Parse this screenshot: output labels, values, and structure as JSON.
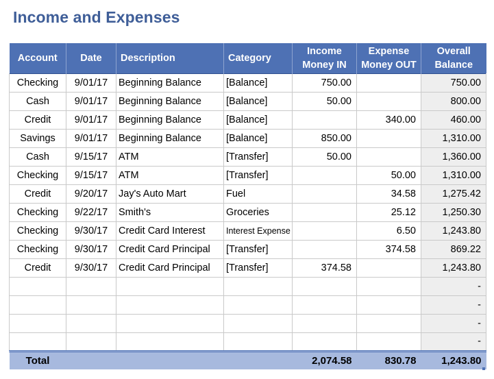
{
  "title": "Income and Expenses",
  "columns": {
    "account": "Account",
    "date": "Date",
    "description": "Description",
    "category": "Category",
    "income_line1": "Income",
    "income_line2": "Money IN",
    "expense_line1": "Expense",
    "expense_line2": "Money OUT",
    "balance_line1": "Overall",
    "balance_line2": "Balance"
  },
  "rows": [
    {
      "account": "Checking",
      "date": "9/01/17",
      "description": "Beginning Balance",
      "category": "[Balance]",
      "income": "750.00",
      "expense": "",
      "balance": "750.00"
    },
    {
      "account": "Cash",
      "date": "9/01/17",
      "description": "Beginning Balance",
      "category": "[Balance]",
      "income": "50.00",
      "expense": "",
      "balance": "800.00"
    },
    {
      "account": "Credit",
      "date": "9/01/17",
      "description": "Beginning Balance",
      "category": "[Balance]",
      "income": "",
      "expense": "340.00",
      "balance": "460.00"
    },
    {
      "account": "Savings",
      "date": "9/01/17",
      "description": "Beginning Balance",
      "category": "[Balance]",
      "income": "850.00",
      "expense": "",
      "balance": "1,310.00"
    },
    {
      "account": "Cash",
      "date": "9/15/17",
      "description": "ATM",
      "category": "[Transfer]",
      "income": "50.00",
      "expense": "",
      "balance": "1,360.00"
    },
    {
      "account": "Checking",
      "date": "9/15/17",
      "description": "ATM",
      "category": "[Transfer]",
      "income": "",
      "expense": "50.00",
      "balance": "1,310.00"
    },
    {
      "account": "Credit",
      "date": "9/20/17",
      "description": "Jay's Auto Mart",
      "category": "Fuel",
      "income": "",
      "expense": "34.58",
      "balance": "1,275.42"
    },
    {
      "account": "Checking",
      "date": "9/22/17",
      "description": "Smith's",
      "category": "Groceries",
      "income": "",
      "expense": "25.12",
      "balance": "1,250.30"
    },
    {
      "account": "Checking",
      "date": "9/30/17",
      "description": "Credit Card Interest",
      "category": "Interest Expense",
      "income": "",
      "expense": "6.50",
      "balance": "1,243.80"
    },
    {
      "account": "Checking",
      "date": "9/30/17",
      "description": "Credit Card Principal",
      "category": "[Transfer]",
      "income": "",
      "expense": "374.58",
      "balance": "869.22"
    },
    {
      "account": "Credit",
      "date": "9/30/17",
      "description": "Credit Card Principal",
      "category": "[Transfer]",
      "income": "374.58",
      "expense": "",
      "balance": "1,243.80"
    },
    {
      "account": "",
      "date": "",
      "description": "",
      "category": "",
      "income": "",
      "expense": "",
      "balance": "-"
    },
    {
      "account": "",
      "date": "",
      "description": "",
      "category": "",
      "income": "",
      "expense": "",
      "balance": "-"
    },
    {
      "account": "",
      "date": "",
      "description": "",
      "category": "",
      "income": "",
      "expense": "",
      "balance": "-"
    },
    {
      "account": "",
      "date": "",
      "description": "",
      "category": "",
      "income": "",
      "expense": "",
      "balance": "-"
    }
  ],
  "totals": {
    "label": "Total",
    "income": "2,074.58",
    "expense": "830.78",
    "balance": "1,243.80"
  },
  "colors": {
    "title": "#3f5e98",
    "header_bg": "#4e71b4",
    "total_bg": "#a7b9de",
    "balance_bg": "#eeeeee"
  }
}
